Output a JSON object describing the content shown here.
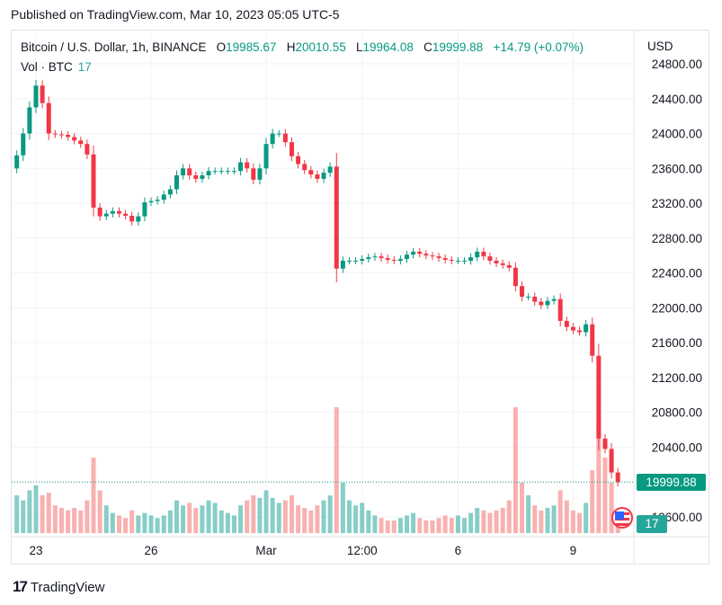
{
  "published": "Published on TradingView.com, Mar 10, 2023 05:05 UTC-5",
  "legend": {
    "symbol": "Bitcoin / U.S. Dollar, 1h, BINANCE",
    "o_label": "O",
    "o": "19985.67",
    "h_label": "H",
    "h": "20010.55",
    "l_label": "L",
    "l": "19964.08",
    "c_label": "C",
    "c": "19999.88",
    "change": "+14.79 (+0.07%)",
    "vol_label": "Vol · BTC",
    "vol_value": "17"
  },
  "currency": "USD",
  "last_price_tag": "19999.88",
  "volume_tag": "17",
  "footer_brand": "TradingView",
  "icons": {
    "flag": "us-flag-icon",
    "logo": "tradingview-logo-icon"
  },
  "colors": {
    "up": "#089981",
    "down": "#f23645",
    "vol_up": "#26a69a",
    "vol_down": "#f7a9a7"
  },
  "chart_data": {
    "type": "candlestick",
    "title": "Bitcoin / U.S. Dollar, 1h, BINANCE",
    "ylim": [
      19400,
      24900
    ],
    "yticks": [
      "24800.00",
      "24400.00",
      "24000.00",
      "23600.00",
      "23200.00",
      "22800.00",
      "22400.00",
      "22000.00",
      "21600.00",
      "21200.00",
      "20800.00",
      "20400.00",
      "19600.00"
    ],
    "xticks": [
      {
        "label": "23",
        "time": "2023-02-23T00:00"
      },
      {
        "label": "26",
        "time": "2023-02-26T00:00"
      },
      {
        "label": "Mar",
        "time": "2023-03-01T00:00"
      },
      {
        "label": "12:00",
        "time": "2023-03-03T12:00"
      },
      {
        "label": "6",
        "time": "2023-03-06T00:00"
      },
      {
        "label": "9",
        "time": "2023-03-09T00:00"
      }
    ],
    "grid": true,
    "last_price": 19999.88,
    "candles_time_close_volume": [
      [
        "2023-02-22T12:00",
        23750,
        30
      ],
      [
        "2023-02-22T16:00",
        24000,
        26
      ],
      [
        "2023-02-22T20:00",
        24300,
        34
      ],
      [
        "2023-02-23T00:00",
        24550,
        38
      ],
      [
        "2023-02-23T04:00",
        24350,
        30
      ],
      [
        "2023-02-23T08:00",
        24000,
        32
      ],
      [
        "2023-02-23T12:00",
        23990,
        22
      ],
      [
        "2023-02-23T16:00",
        23985,
        20
      ],
      [
        "2023-02-23T20:00",
        23960,
        18
      ],
      [
        "2023-02-24T00:00",
        23920,
        20
      ],
      [
        "2023-02-24T04:00",
        23880,
        18
      ],
      [
        "2023-02-24T08:00",
        23760,
        26
      ],
      [
        "2023-02-24T12:00",
        23150,
        60
      ],
      [
        "2023-02-24T16:00",
        23050,
        34
      ],
      [
        "2023-02-24T20:00",
        23080,
        22
      ],
      [
        "2023-02-25T00:00",
        23110,
        16
      ],
      [
        "2023-02-25T04:00",
        23080,
        14
      ],
      [
        "2023-02-25T08:00",
        23056,
        12
      ],
      [
        "2023-02-25T12:00",
        22990,
        18
      ],
      [
        "2023-02-25T16:00",
        23050,
        14
      ],
      [
        "2023-02-25T20:00",
        23210,
        16
      ],
      [
        "2023-02-26T00:00",
        23225,
        14
      ],
      [
        "2023-02-26T04:00",
        23240,
        12
      ],
      [
        "2023-02-26T08:00",
        23300,
        14
      ],
      [
        "2023-02-26T12:00",
        23360,
        18
      ],
      [
        "2023-02-26T16:00",
        23520,
        26
      ],
      [
        "2023-02-26T20:00",
        23600,
        22
      ],
      [
        "2023-02-27T00:00",
        23520,
        24
      ],
      [
        "2023-02-27T04:00",
        23480,
        20
      ],
      [
        "2023-02-27T08:00",
        23520,
        22
      ],
      [
        "2023-02-27T12:00",
        23570,
        26
      ],
      [
        "2023-02-27T16:00",
        23570,
        24
      ],
      [
        "2023-02-27T20:00",
        23570,
        18
      ],
      [
        "2023-02-28T00:00",
        23570,
        16
      ],
      [
        "2023-02-28T04:00",
        23570,
        14
      ],
      [
        "2023-02-28T08:00",
        23670,
        22
      ],
      [
        "2023-02-28T12:00",
        23600,
        26
      ],
      [
        "2023-02-28T16:00",
        23470,
        30
      ],
      [
        "2023-02-28T20:00",
        23600,
        28
      ],
      [
        "2023-03-01T00:00",
        23880,
        34
      ],
      [
        "2023-03-01T04:00",
        24000,
        28
      ],
      [
        "2023-03-01T08:00",
        24000,
        24
      ],
      [
        "2023-03-01T12:00",
        23900,
        26
      ],
      [
        "2023-03-01T16:00",
        23740,
        30
      ],
      [
        "2023-03-01T20:00",
        23650,
        22
      ],
      [
        "2023-03-02T00:00",
        23580,
        20
      ],
      [
        "2023-03-02T04:00",
        23530,
        18
      ],
      [
        "2023-03-02T08:00",
        23480,
        22
      ],
      [
        "2023-03-02T12:00",
        23550,
        26
      ],
      [
        "2023-03-02T16:00",
        23620,
        30
      ],
      [
        "2023-03-02T20:00",
        22450,
        100
      ],
      [
        "2023-03-03T00:00",
        22540,
        40
      ],
      [
        "2023-03-03T04:00",
        22540,
        26
      ],
      [
        "2023-03-03T08:00",
        22540,
        22
      ],
      [
        "2023-03-03T12:00",
        22560,
        24
      ],
      [
        "2023-03-03T16:00",
        22580,
        18
      ],
      [
        "2023-03-03T20:00",
        22590,
        14
      ],
      [
        "2023-03-04T00:00",
        22570,
        12
      ],
      [
        "2023-03-04T04:00",
        22550,
        10
      ],
      [
        "2023-03-04T08:00",
        22540,
        10
      ],
      [
        "2023-03-04T12:00",
        22560,
        12
      ],
      [
        "2023-03-04T16:00",
        22610,
        14
      ],
      [
        "2023-03-04T20:00",
        22644,
        16
      ],
      [
        "2023-03-05T00:00",
        22620,
        12
      ],
      [
        "2023-03-05T04:00",
        22600,
        10
      ],
      [
        "2023-03-05T08:00",
        22590,
        10
      ],
      [
        "2023-03-05T12:00",
        22570,
        12
      ],
      [
        "2023-03-05T16:00",
        22550,
        14
      ],
      [
        "2023-03-05T20:00",
        22540,
        12
      ],
      [
        "2023-03-06T00:00",
        22540,
        14
      ],
      [
        "2023-03-06T04:00",
        22540,
        12
      ],
      [
        "2023-03-06T08:00",
        22580,
        16
      ],
      [
        "2023-03-06T12:00",
        22644,
        20
      ],
      [
        "2023-03-06T16:00",
        22590,
        18
      ],
      [
        "2023-03-06T20:00",
        22540,
        16
      ],
      [
        "2023-03-07T00:00",
        22510,
        18
      ],
      [
        "2023-03-07T04:00",
        22490,
        20
      ],
      [
        "2023-03-07T08:00",
        22460,
        26
      ],
      [
        "2023-03-07T12:00",
        22250,
        100
      ],
      [
        "2023-03-07T16:00",
        22127,
        40
      ],
      [
        "2023-03-07T20:00",
        22127,
        30
      ],
      [
        "2023-03-08T00:00",
        22070,
        22
      ],
      [
        "2023-03-08T04:00",
        22030,
        18
      ],
      [
        "2023-03-08T08:00",
        22080,
        20
      ],
      [
        "2023-03-08T12:00",
        22100,
        22
      ],
      [
        "2023-03-08T16:00",
        21850,
        34
      ],
      [
        "2023-03-08T20:00",
        21780,
        26
      ],
      [
        "2023-03-09T00:00",
        21740,
        18
      ],
      [
        "2023-03-09T04:00",
        21720,
        16
      ],
      [
        "2023-03-09T08:00",
        21810,
        24
      ],
      [
        "2023-03-09T12:00",
        21450,
        50
      ],
      [
        "2023-03-09T16:00",
        20500,
        90
      ],
      [
        "2023-03-09T20:00",
        20380,
        60
      ],
      [
        "2023-03-10T00:00",
        20110,
        40
      ],
      [
        "2023-03-10T04:00",
        19999.88,
        17
      ]
    ]
  }
}
